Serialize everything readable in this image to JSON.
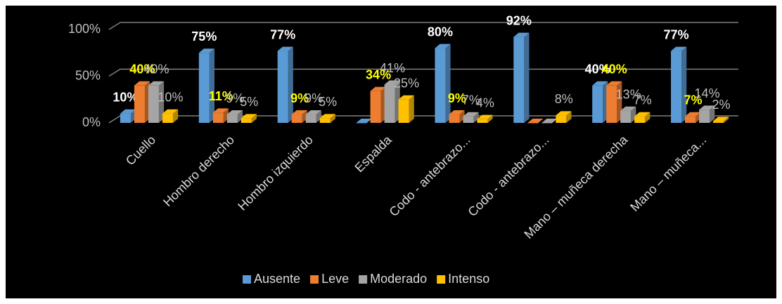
{
  "chart_data": {
    "type": "bar",
    "categories": [
      "Cuello",
      "Hombro derecho",
      "Hombro izquierdo",
      "Espalda",
      "Codo - antebrazo...",
      "Codo - antebrazo...",
      "Mano – muñeca derecha",
      "Mano – muñeca..."
    ],
    "series": [
      {
        "name": "Ausente",
        "color": "#5b9bd5",
        "label_color": "#ffffff",
        "label_bold": true,
        "values": [
          10,
          75,
          77,
          0,
          80,
          92,
          40,
          77
        ],
        "value_labels": [
          "10%",
          "75%",
          "77%",
          null,
          "80%",
          "92%",
          "40%",
          "77%"
        ]
      },
      {
        "name": "Leve",
        "color": "#ed7d31",
        "label_color": "#ffff00",
        "label_bold": true,
        "values": [
          40,
          11,
          9,
          34,
          9,
          0,
          40,
          7
        ],
        "value_labels": [
          "40%",
          "11%",
          "9%",
          "34%",
          "9%",
          null,
          "40%",
          "7%"
        ]
      },
      {
        "name": "Moderado",
        "color": "#a5a5a5",
        "label_color": "#bfbfbf",
        "label_bold": false,
        "values": [
          40,
          9,
          9,
          41,
          7,
          0,
          13,
          14
        ],
        "value_labels": [
          "40%",
          "9%",
          "9%",
          "41%",
          "7%",
          null,
          "13%",
          "14%"
        ]
      },
      {
        "name": "Intenso",
        "color": "#ffc000",
        "label_color": "#bfbfbf",
        "label_bold": false,
        "values": [
          10,
          5,
          5,
          25,
          4,
          8,
          7,
          2
        ],
        "value_labels": [
          "10%",
          "5%",
          "5%",
          "25%",
          "4%",
          "8%",
          "7%",
          "2%"
        ]
      }
    ],
    "ylim": [
      0,
      100
    ],
    "yticks": [
      {
        "value": 0,
        "label": "0%"
      },
      {
        "value": 50,
        "label": "50%"
      },
      {
        "value": 100,
        "label": "100%"
      }
    ],
    "grid": true,
    "legend": "bottom"
  }
}
